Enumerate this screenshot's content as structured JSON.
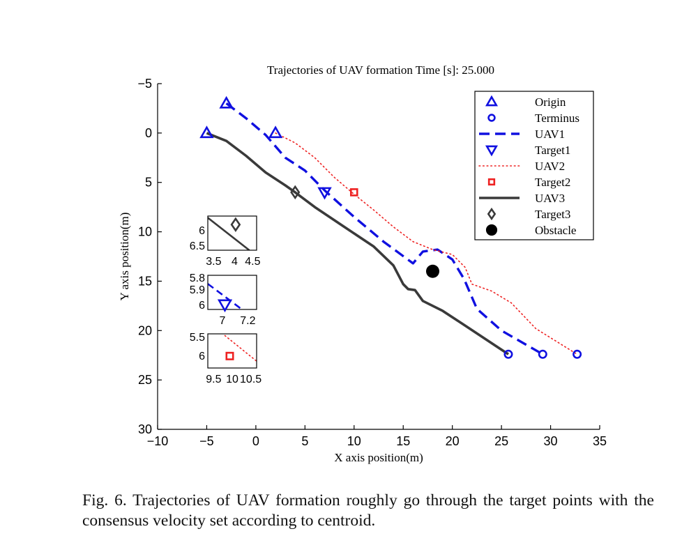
{
  "figure": {
    "caption": "Fig. 6. Trajectories of UAV formation roughly go through the target points with the consensus velocity set according to centroid."
  },
  "chart_data": {
    "type": "line",
    "title": "Trajectories of UAV formation  Time [s]: 25.000",
    "xlabel": "X axis position(m)",
    "ylabel": "Y axis position(m)",
    "xlim": [
      -10,
      35
    ],
    "ylim": [
      -5,
      30
    ],
    "y_reversed": true,
    "xticks": [
      -10,
      -5,
      0,
      5,
      10,
      15,
      20,
      25,
      30,
      35
    ],
    "yticks": [
      -5,
      0,
      5,
      10,
      15,
      20,
      25,
      30
    ],
    "xtick_labels": [
      "−10",
      "−5",
      "0",
      "5",
      "10",
      "15",
      "20",
      "25",
      "30",
      "35"
    ],
    "ytick_labels": [
      "−5",
      "0",
      "5",
      "10",
      "15",
      "20",
      "25",
      "30"
    ],
    "grid": false,
    "legend_position": "top-right",
    "legend": [
      {
        "label": "Origin",
        "marker": "triangle-up",
        "color": "#1010e0"
      },
      {
        "label": "Terminus",
        "marker": "circle",
        "color": "#1010e0"
      },
      {
        "label": "UAV1",
        "line": "dashed",
        "color": "#1010e0"
      },
      {
        "label": "Target1",
        "marker": "triangle-down",
        "color": "#1010e0"
      },
      {
        "label": "UAV2",
        "line": "dotted",
        "color": "#ee2222"
      },
      {
        "label": "Target2",
        "marker": "square",
        "color": "#ee2222"
      },
      {
        "label": "UAV3",
        "line": "solid",
        "color": "#3a3a3a"
      },
      {
        "label": "Target3",
        "marker": "diamond",
        "color": "#3a3a3a"
      },
      {
        "label": "Obstacle",
        "marker": "filled-circle",
        "color": "#000000"
      }
    ],
    "series": [
      {
        "name": "UAV1",
        "color": "#1010e0",
        "style": "dashed",
        "points": [
          [
            -3,
            -3
          ],
          [
            -1,
            -1.5
          ],
          [
            1,
            0.2
          ],
          [
            3,
            2.5
          ],
          [
            5,
            3.8
          ],
          [
            7,
            5.8
          ],
          [
            10,
            8.5
          ],
          [
            13,
            11
          ],
          [
            16,
            13.2
          ],
          [
            17,
            12
          ],
          [
            18.5,
            11.8
          ],
          [
            20,
            12.8
          ],
          [
            21.2,
            14.8
          ],
          [
            22.5,
            17.8
          ],
          [
            25,
            20
          ],
          [
            29.2,
            22.4
          ]
        ]
      },
      {
        "name": "UAV2",
        "color": "#ee2222",
        "style": "dotted",
        "points": [
          [
            2,
            0
          ],
          [
            4,
            1
          ],
          [
            6,
            2.5
          ],
          [
            8,
            4.5
          ],
          [
            10,
            6.2
          ],
          [
            12,
            7.8
          ],
          [
            14,
            9.5
          ],
          [
            16,
            11
          ],
          [
            18,
            11.8
          ],
          [
            20,
            12.3
          ],
          [
            21.3,
            13.6
          ],
          [
            22,
            15.3
          ],
          [
            24,
            16
          ],
          [
            26,
            17.2
          ],
          [
            28.5,
            19.8
          ],
          [
            32.7,
            22.4
          ]
        ]
      },
      {
        "name": "UAV3",
        "color": "#3a3a3a",
        "style": "solid",
        "points": [
          [
            -5,
            0
          ],
          [
            -3,
            0.8
          ],
          [
            -1,
            2.3
          ],
          [
            1,
            4
          ],
          [
            3,
            5.3
          ],
          [
            4,
            6
          ],
          [
            6,
            7.5
          ],
          [
            9,
            9.5
          ],
          [
            12,
            11.5
          ],
          [
            14,
            13.4
          ],
          [
            15,
            15.3
          ],
          [
            15.5,
            15.8
          ],
          [
            16.2,
            15.9
          ],
          [
            17,
            17
          ],
          [
            19,
            18
          ],
          [
            21,
            19.3
          ],
          [
            25.7,
            22.4
          ]
        ]
      }
    ],
    "markers": {
      "Origin": [
        [
          -3,
          -3
        ],
        [
          -5,
          0
        ],
        [
          2,
          0
        ]
      ],
      "Terminus": [
        [
          25.7,
          22.4
        ],
        [
          29.2,
          22.4
        ],
        [
          32.7,
          22.4
        ]
      ],
      "Target1": [
        [
          7,
          6
        ]
      ],
      "Target2": [
        [
          10,
          6
        ]
      ],
      "Target3": [
        [
          4,
          6
        ]
      ],
      "Obstacle": [
        [
          18,
          14
        ]
      ]
    },
    "insets": [
      {
        "name": "Target3-zoom",
        "xlim": [
          3.5,
          4.5
        ],
        "ylim": [
          5.8,
          6.6
        ],
        "xtick_labels": [
          "3.5",
          "4",
          "4.5"
        ],
        "ytick_labels": [
          "6",
          "6.5"
        ],
        "marker": {
          "type": "diamond",
          "label": "Target3",
          "point": [
            4,
            6
          ]
        }
      },
      {
        "name": "Target1-zoom",
        "xlim": [
          6.9,
          7.2
        ],
        "ylim": [
          5.75,
          6.05
        ],
        "xtick_labels": [
          "7",
          "7.2"
        ],
        "ytick_labels": [
          "5.8",
          "5.9",
          "6"
        ],
        "marker": {
          "type": "triangle-down",
          "label": "Target1",
          "point": [
            7,
            6
          ]
        }
      },
      {
        "name": "Target2-zoom",
        "xlim": [
          9.5,
          10.5
        ],
        "ylim": [
          5.4,
          6.2
        ],
        "xtick_labels": [
          "9.5",
          "10",
          "10.5"
        ],
        "ytick_labels": [
          "5.5",
          "6"
        ],
        "marker": {
          "type": "square",
          "label": "Target2",
          "point": [
            10,
            6
          ]
        }
      }
    ]
  }
}
